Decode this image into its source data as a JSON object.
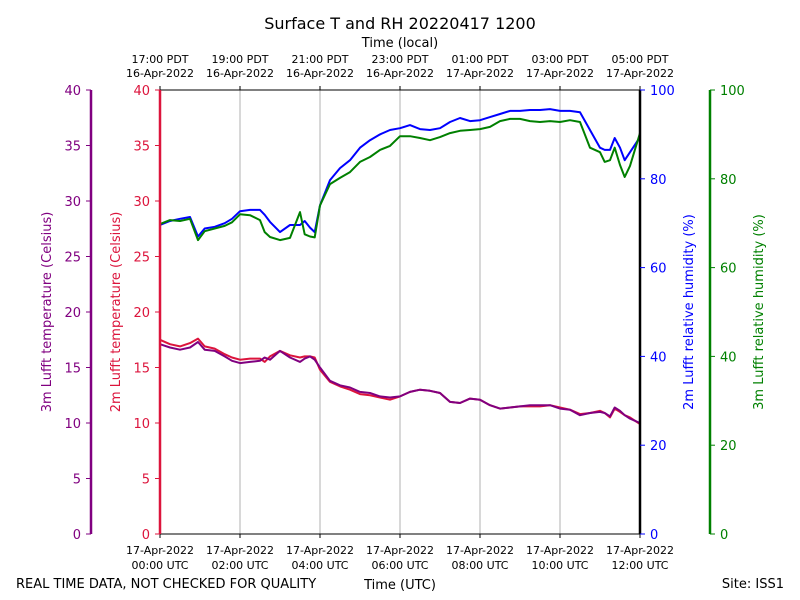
{
  "chart_data": {
    "type": "line",
    "title": "Surface T and RH 20220417 1200",
    "top_xlabel": "Time (local)",
    "xlabel": "Time (UTC)",
    "footer_left": "REAL TIME DATA, NOT CHECKED FOR QUALITY",
    "footer_right": "Site: ISS1",
    "xlim": [
      "00:00",
      "12:00"
    ],
    "grid": "vertical",
    "bottom_ticks": [
      {
        "date": "17-Apr-2022",
        "time": "00:00 UTC"
      },
      {
        "date": "17-Apr-2022",
        "time": "02:00 UTC"
      },
      {
        "date": "17-Apr-2022",
        "time": "04:00 UTC"
      },
      {
        "date": "17-Apr-2022",
        "time": "06:00 UTC"
      },
      {
        "date": "17-Apr-2022",
        "time": "08:00 UTC"
      },
      {
        "date": "17-Apr-2022",
        "time": "10:00 UTC"
      },
      {
        "date": "17-Apr-2022",
        "time": "12:00 UTC"
      }
    ],
    "top_ticks": [
      {
        "time": "17:00 PDT",
        "date": "16-Apr-2022"
      },
      {
        "time": "19:00 PDT",
        "date": "16-Apr-2022"
      },
      {
        "time": "21:00 PDT",
        "date": "16-Apr-2022"
      },
      {
        "time": "23:00 PDT",
        "date": "16-Apr-2022"
      },
      {
        "time": "01:00 PDT",
        "date": "17-Apr-2022"
      },
      {
        "time": "03:00 PDT",
        "date": "17-Apr-2022"
      },
      {
        "time": "05:00 PDT",
        "date": "17-Apr-2022"
      }
    ],
    "axes": [
      {
        "id": "t3",
        "label": "3m Lufft temperature (Celsius)",
        "ylim": [
          0,
          40
        ],
        "ticks": [
          0,
          5,
          10,
          15,
          20,
          25,
          30,
          35,
          40
        ],
        "color": "#800080",
        "side": "left-outer"
      },
      {
        "id": "t2",
        "label": "2m Lufft temperature (Celsius)",
        "ylim": [
          0,
          40
        ],
        "ticks": [
          0,
          5,
          10,
          15,
          20,
          25,
          30,
          35,
          40
        ],
        "color": "#dc143c",
        "side": "left"
      },
      {
        "id": "rh2",
        "label": "2m Lufft relative humidity (%)",
        "ylim": [
          0,
          100
        ],
        "ticks": [
          0,
          20,
          40,
          60,
          80,
          100
        ],
        "color": "#0000ff",
        "side": "right"
      },
      {
        "id": "rh3",
        "label": "3m Lufft relative humidity (%)",
        "ylim": [
          0,
          100
        ],
        "ticks": [
          0,
          20,
          40,
          60,
          80,
          100
        ],
        "color": "#008000",
        "side": "right-outer"
      }
    ],
    "x": [
      "00:00",
      "00:15",
      "00:30",
      "00:45",
      "00:57",
      "01:07",
      "01:22",
      "01:37",
      "01:48",
      "02:00",
      "02:15",
      "02:30",
      "02:37",
      "02:45",
      "03:00",
      "03:15",
      "03:30",
      "03:37",
      "03:45",
      "03:52",
      "04:00",
      "04:15",
      "04:30",
      "04:45",
      "05:00",
      "05:15",
      "05:30",
      "05:45",
      "06:00",
      "06:15",
      "06:30",
      "06:45",
      "07:00",
      "07:15",
      "07:30",
      "07:45",
      "08:00",
      "08:15",
      "08:30",
      "08:45",
      "09:00",
      "09:15",
      "09:30",
      "09:45",
      "10:00",
      "10:15",
      "10:30",
      "10:45",
      "11:00",
      "11:07",
      "11:15",
      "11:22",
      "11:30",
      "11:37",
      "11:45",
      "12:00"
    ],
    "series": [
      {
        "axis": "rh2",
        "color": "#0000ff",
        "values": [
          69.6,
          70.5,
          71,
          71.4,
          67,
          68.8,
          69.2,
          70,
          71,
          72.7,
          73,
          73,
          71.9,
          70.3,
          68,
          69.6,
          69.6,
          70.5,
          69,
          68,
          74,
          79.7,
          82.4,
          84.2,
          87,
          88.7,
          90,
          91,
          91.4,
          92.1,
          91.2,
          91,
          91.4,
          92.8,
          93.7,
          93,
          93.2,
          93.9,
          94.6,
          95.3,
          95.3,
          95.5,
          95.5,
          95.7,
          95.3,
          95.3,
          95,
          91,
          87,
          86.5,
          86.5,
          89.2,
          87,
          84.2,
          86,
          89.4
        ]
      },
      {
        "axis": "rh3",
        "color": "#008000",
        "values": [
          69.8,
          70.7,
          70.5,
          71,
          66.2,
          68.2,
          68.8,
          69.4,
          70.2,
          72,
          71.8,
          70.7,
          68,
          66.9,
          66.2,
          66.7,
          72.5,
          67.5,
          67,
          66.8,
          74,
          78.8,
          80.2,
          81.5,
          83.8,
          84.9,
          86.5,
          87.4,
          89.6,
          89.6,
          89.2,
          88.7,
          89.4,
          90.3,
          90.8,
          91,
          91.2,
          91.7,
          93,
          93.5,
          93.5,
          93,
          92.8,
          93,
          92.8,
          93.2,
          92.8,
          87,
          86,
          83.8,
          84.2,
          87,
          83.1,
          80.4,
          82.9,
          90.3
        ]
      },
      {
        "axis": "t2",
        "color": "#dc143c",
        "values": [
          17.5,
          17.1,
          16.9,
          17.2,
          17.6,
          16.9,
          16.7,
          16.2,
          15.9,
          15.7,
          15.8,
          15.8,
          15.5,
          16.0,
          16.5,
          16.1,
          15.9,
          16.0,
          16.0,
          15.9,
          14.8,
          13.7,
          13.3,
          13.0,
          12.6,
          12.5,
          12.3,
          12.1,
          12.4,
          12.8,
          13.0,
          12.9,
          12.7,
          11.9,
          11.8,
          12.2,
          12.1,
          11.6,
          11.3,
          11.4,
          11.5,
          11.5,
          11.5,
          11.6,
          11.4,
          11.2,
          10.8,
          10.9,
          11.1,
          10.9,
          10.5,
          11.3,
          11.0,
          10.7,
          10.5,
          9.9
        ]
      },
      {
        "axis": "t3",
        "color": "#800080",
        "values": [
          17.1,
          16.8,
          16.6,
          16.8,
          17.3,
          16.6,
          16.5,
          16.0,
          15.6,
          15.4,
          15.5,
          15.6,
          15.9,
          15.7,
          16.5,
          15.9,
          15.5,
          15.8,
          16.0,
          15.7,
          15.0,
          13.8,
          13.4,
          13.2,
          12.8,
          12.7,
          12.4,
          12.3,
          12.4,
          12.8,
          13.0,
          12.9,
          12.7,
          11.9,
          11.8,
          12.2,
          12.1,
          11.6,
          11.3,
          11.4,
          11.5,
          11.6,
          11.6,
          11.6,
          11.3,
          11.2,
          10.7,
          10.9,
          11.0,
          10.9,
          10.6,
          11.4,
          11.1,
          10.7,
          10.4,
          10.0
        ]
      }
    ]
  }
}
